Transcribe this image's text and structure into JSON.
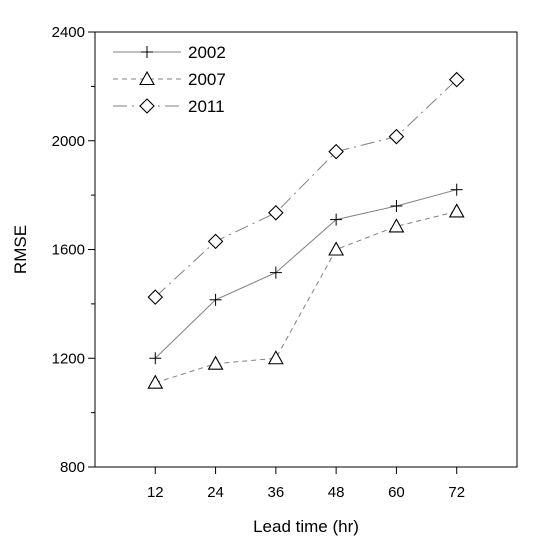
{
  "chart_data": {
    "type": "line",
    "title": "",
    "xlabel": "Lead time (hr)",
    "ylabel": "RMSE",
    "x": [
      12,
      24,
      36,
      48,
      60,
      72
    ],
    "x_tick_labels": [
      "12",
      "24",
      "36",
      "48",
      "60",
      "72"
    ],
    "xlim": [
      0,
      84
    ],
    "ylim": [
      800,
      2400
    ],
    "y_major_ticks": [
      800,
      1200,
      1600,
      2000,
      2400
    ],
    "y_tick_labels": [
      "800",
      "1200",
      "1600",
      "2000",
      "2400"
    ],
    "y_minor_ticks": [
      1000,
      1400,
      1800,
      2200
    ],
    "grid": false,
    "legend_position": "top-left",
    "series": [
      {
        "name": "2002",
        "marker": "plus",
        "line_style": "solid",
        "color": "#808080",
        "values": [
          1200,
          1415,
          1515,
          1710,
          1760,
          1820
        ]
      },
      {
        "name": "2007",
        "marker": "triangle",
        "line_style": "dashed",
        "color": "#808080",
        "values": [
          1110,
          1180,
          1200,
          1600,
          1685,
          1740
        ]
      },
      {
        "name": "2011",
        "marker": "diamond",
        "line_style": "dashdot",
        "color": "#808080",
        "values": [
          1425,
          1630,
          1735,
          1960,
          2015,
          2225
        ]
      }
    ]
  }
}
